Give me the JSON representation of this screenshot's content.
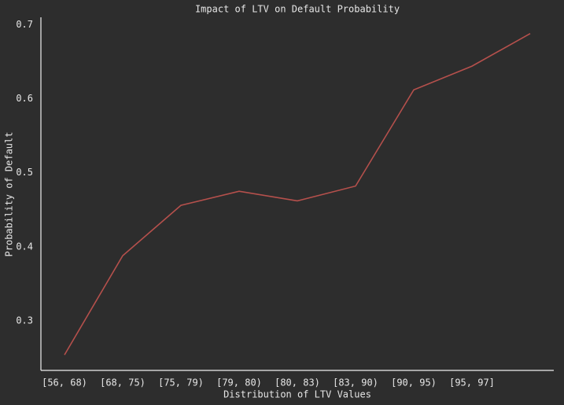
{
  "chart_data": {
    "type": "line",
    "title": "Impact of LTV on Default Probability",
    "xlabel": "Distribution of LTV Values",
    "ylabel": "Probability of Default",
    "categories": [
      "[56, 68)",
      "[68, 75)",
      "[75, 79)",
      "[79, 80)",
      "[80, 83)",
      "[83, 90)",
      "[90, 95)",
      "[95, 97]",
      null
    ],
    "values": [
      0.254,
      0.388,
      0.456,
      0.475,
      0.462,
      0.482,
      0.612,
      0.644,
      0.688
    ],
    "color": "#b5504c",
    "ylim": [
      0.233,
      0.71
    ],
    "yticks": [
      0.3,
      0.4,
      0.5,
      0.6,
      0.7
    ],
    "grid": false
  }
}
